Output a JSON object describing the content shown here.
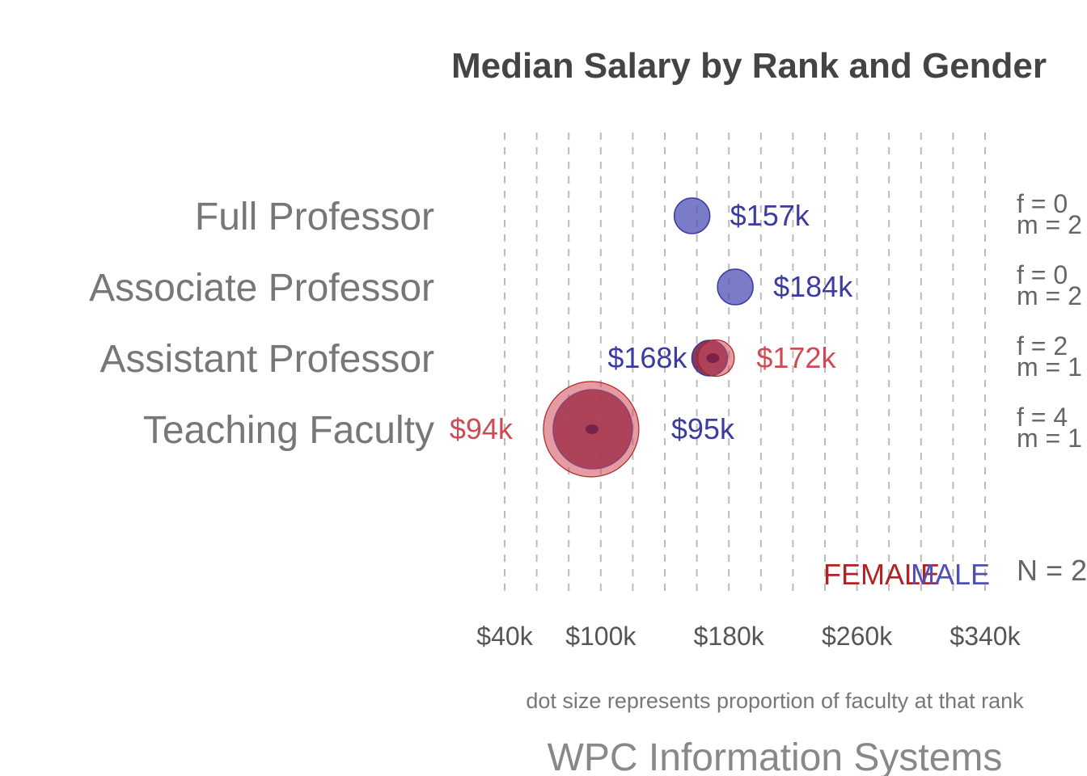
{
  "title": "Median Salary by Rank and Gender",
  "colors": {
    "female": "#b22222",
    "male": "#3b3ba0",
    "female_fill": "#cd4b55",
    "male_fill": "#4f50b4",
    "overlap_fill": "#7a2349",
    "gridline": "#bbbbbb"
  },
  "chart_data": {
    "type": "scatter",
    "title": "Median Salary by Rank and Gender",
    "xlabel": "",
    "ylabel": "",
    "x_ticks": [
      "$40k",
      "$100k",
      "$180k",
      "$260k",
      "$340k"
    ],
    "x_tick_values": [
      40,
      100,
      180,
      260,
      340
    ],
    "xlim": [
      40,
      340
    ],
    "x_gridline_values": [
      40,
      60,
      80,
      100,
      120,
      140,
      160,
      180,
      200,
      220,
      240,
      260,
      280,
      300,
      320,
      340
    ],
    "x_units": "$k",
    "grid": "vertical dashed",
    "categories": [
      "Full Professor",
      "Associate Professor",
      "Assistant Professor",
      "Teaching Faculty"
    ],
    "series": [
      {
        "name": "FEMALE",
        "values": [
          null,
          null,
          172,
          94
        ],
        "labels": [
          "",
          "",
          "$172k",
          "$94k"
        ],
        "size_proportion": [
          0,
          0,
          0.09,
          0.82
        ]
      },
      {
        "name": "MALE",
        "values": [
          157,
          184,
          168,
          95
        ],
        "labels": [
          "$157k",
          "$184k",
          "$168k",
          "$95k"
        ],
        "size_proportion": [
          0.08,
          0.08,
          0.08,
          0.62
        ]
      }
    ],
    "counts": [
      {
        "f": "f  =  0",
        "m": "m =  2"
      },
      {
        "f": "f  =  0",
        "m": "m =  2"
      },
      {
        "f": "f  =  2",
        "m": "m =  1"
      },
      {
        "f": "f  =  4",
        "m": "m = 1"
      }
    ],
    "total_label": "N = 2",
    "legend": [
      "FEMALE",
      "MALE"
    ],
    "legend_placement": "bottom-right",
    "caption": "dot size represents proportion of faculty at that rank"
  },
  "source": "WPC Information Systems"
}
